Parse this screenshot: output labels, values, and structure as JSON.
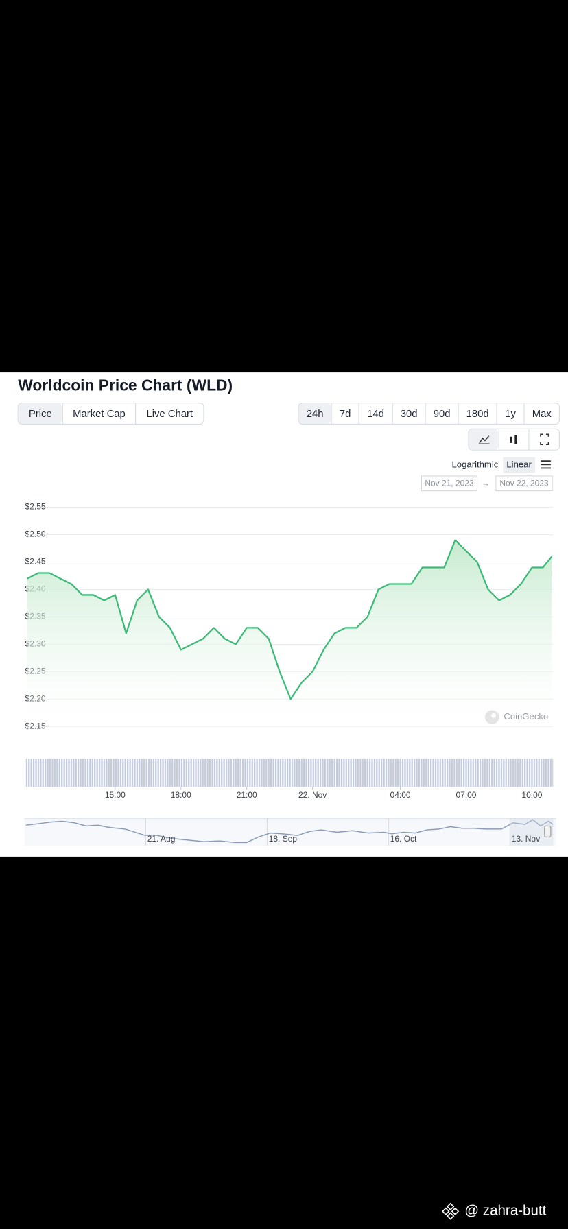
{
  "header": {
    "title": "Worldcoin Price Chart (WLD)"
  },
  "tabs": [
    "Price",
    "Market Cap",
    "Live Chart"
  ],
  "active_tab": 0,
  "ranges": [
    "24h",
    "7d",
    "14d",
    "30d",
    "90d",
    "180d",
    "1y",
    "Max"
  ],
  "active_range": 0,
  "scale_options": [
    "Logarithmic",
    "Linear"
  ],
  "active_scale": 1,
  "date_range": {
    "from": "Nov 21, 2023",
    "arrow": "→",
    "to": "Nov 22, 2023"
  },
  "watermark": "CoinGecko",
  "navigator_labels": [
    "21. Aug",
    "18. Sep",
    "16. Oct",
    "13. Nov"
  ],
  "credit": "@ zahra-butt",
  "chart_data": {
    "type": "area",
    "color": "#3dbb78",
    "grid": true,
    "x": [
      11.0,
      11.5,
      12.0,
      12.5,
      13.0,
      13.5,
      14.0,
      14.5,
      15.0,
      15.5,
      16.0,
      16.5,
      17.0,
      17.5,
      18.0,
      18.5,
      19.0,
      19.5,
      20.0,
      20.5,
      21.0,
      21.5,
      22.0,
      22.5,
      23.0,
      23.5,
      24.0,
      24.5,
      25.0,
      25.5,
      26.0,
      26.5,
      27.0,
      27.5,
      28.0,
      28.5,
      29.0,
      29.5,
      30.0,
      30.5,
      31.0,
      31.5,
      32.0,
      32.5,
      33.0,
      33.5,
      34.0,
      34.5,
      34.9
    ],
    "values": [
      2.42,
      2.43,
      2.43,
      2.42,
      2.41,
      2.39,
      2.39,
      2.38,
      2.39,
      2.32,
      2.38,
      2.4,
      2.35,
      2.33,
      2.29,
      2.3,
      2.31,
      2.33,
      2.31,
      2.3,
      2.33,
      2.33,
      2.31,
      2.25,
      2.2,
      2.23,
      2.25,
      2.29,
      2.32,
      2.33,
      2.33,
      2.35,
      2.4,
      2.41,
      2.41,
      2.41,
      2.44,
      2.44,
      2.44,
      2.49,
      2.47,
      2.45,
      2.4,
      2.38,
      2.39,
      2.41,
      2.44,
      2.44,
      2.46
    ],
    "xlim": [
      10.93,
      34.93
    ],
    "xticks": [
      {
        "value": 15,
        "label": "15:00"
      },
      {
        "value": 18,
        "label": "18:00"
      },
      {
        "value": 21,
        "label": "21:00"
      },
      {
        "value": 24,
        "label": "22. Nov"
      },
      {
        "value": 28,
        "label": "04:00"
      },
      {
        "value": 31,
        "label": "07:00"
      },
      {
        "value": 34,
        "label": "10:00"
      }
    ],
    "ylim": [
      2.15,
      2.55
    ],
    "yticks": [
      {
        "value": 2.15,
        "label": "$2.15"
      },
      {
        "value": 2.2,
        "label": "$2.20"
      },
      {
        "value": 2.25,
        "label": "$2.25"
      },
      {
        "value": 2.3,
        "label": "$2.30"
      },
      {
        "value": 2.35,
        "label": "$2.35"
      },
      {
        "value": 2.4,
        "label": "$2.40"
      },
      {
        "value": 2.45,
        "label": "$2.45"
      },
      {
        "value": 2.5,
        "label": "$2.50"
      },
      {
        "value": 2.55,
        "label": "$2.55"
      }
    ]
  }
}
